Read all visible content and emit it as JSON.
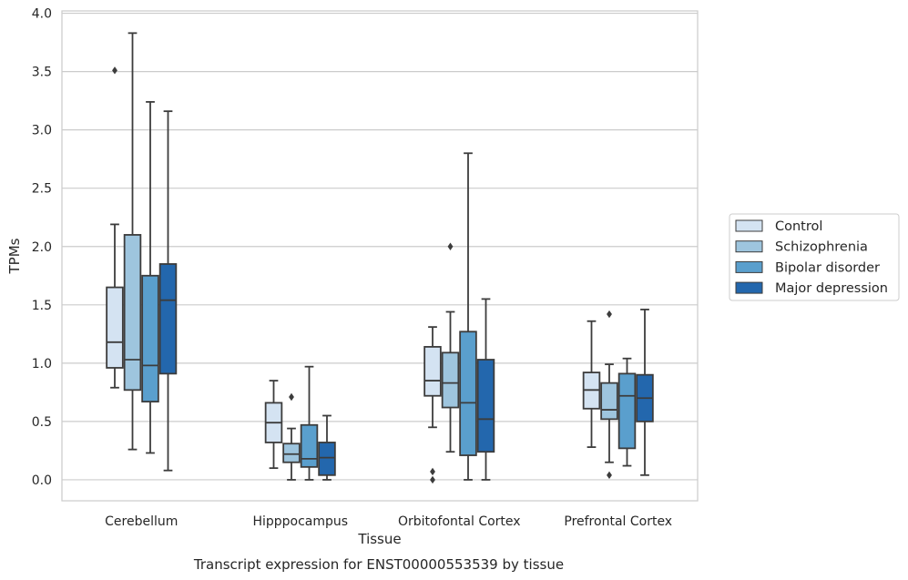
{
  "chart_data": {
    "type": "box",
    "title": "Transcript expression for ENST00000553539 by tissue",
    "xlabel": "Tissue",
    "ylabel": "TPMs",
    "ylim": [
      -0.18,
      4.02
    ],
    "yticks": [
      0.0,
      0.5,
      1.0,
      1.5,
      2.0,
      2.5,
      3.0,
      3.5,
      4.0
    ],
    "ytick_labels": [
      "0.0",
      "0.5",
      "1.0",
      "1.5",
      "2.0",
      "2.5",
      "3.0",
      "3.5",
      "4.0"
    ],
    "grid": "horizontal",
    "legend_position": "right",
    "categories": [
      "Cerebellum",
      "Hipppocampus",
      "Orbitofontal Cortex",
      "Prefrontal Cortex"
    ],
    "series": [
      {
        "name": "Control",
        "color": "#d4e3f2",
        "boxes": [
          {
            "whislo": 0.79,
            "q1": 0.96,
            "med": 1.18,
            "q3": 1.65,
            "whishi": 2.19,
            "fliers": [
              3.51
            ]
          },
          {
            "whislo": 0.1,
            "q1": 0.32,
            "med": 0.49,
            "q3": 0.66,
            "whishi": 0.85,
            "fliers": []
          },
          {
            "whislo": 0.45,
            "q1": 0.72,
            "med": 0.85,
            "q3": 1.14,
            "whishi": 1.31,
            "fliers": [
              0.07,
              0.0
            ]
          },
          {
            "whislo": 0.28,
            "q1": 0.61,
            "med": 0.77,
            "q3": 0.92,
            "whishi": 1.36,
            "fliers": []
          }
        ]
      },
      {
        "name": "Schizophrenia",
        "color": "#9ec5de",
        "boxes": [
          {
            "whislo": 0.26,
            "q1": 0.77,
            "med": 1.03,
            "q3": 2.1,
            "whishi": 3.83,
            "fliers": []
          },
          {
            "whislo": 0.0,
            "q1": 0.15,
            "med": 0.22,
            "q3": 0.31,
            "whishi": 0.44,
            "fliers": [
              0.71
            ]
          },
          {
            "whislo": 0.24,
            "q1": 0.62,
            "med": 0.83,
            "q3": 1.09,
            "whishi": 1.44,
            "fliers": [
              2.0
            ]
          },
          {
            "whislo": 0.15,
            "q1": 0.52,
            "med": 0.6,
            "q3": 0.83,
            "whishi": 0.99,
            "fliers": [
              1.42,
              0.04
            ]
          }
        ]
      },
      {
        "name": "Bipolar disorder",
        "color": "#5a9fcd",
        "boxes": [
          {
            "whislo": 0.23,
            "q1": 0.67,
            "med": 0.98,
            "q3": 1.75,
            "whishi": 3.24,
            "fliers": []
          },
          {
            "whislo": 0.0,
            "q1": 0.11,
            "med": 0.18,
            "q3": 0.47,
            "whishi": 0.97,
            "fliers": []
          },
          {
            "whislo": 0.0,
            "q1": 0.21,
            "med": 0.66,
            "q3": 1.27,
            "whishi": 2.8,
            "fliers": []
          },
          {
            "whislo": 0.12,
            "q1": 0.27,
            "med": 0.72,
            "q3": 0.91,
            "whishi": 1.04,
            "fliers": []
          }
        ]
      },
      {
        "name": "Major depression",
        "color": "#2367ad",
        "boxes": [
          {
            "whislo": 0.08,
            "q1": 0.91,
            "med": 1.54,
            "q3": 1.85,
            "whishi": 3.16,
            "fliers": []
          },
          {
            "whislo": 0.0,
            "q1": 0.04,
            "med": 0.19,
            "q3": 0.32,
            "whishi": 0.55,
            "fliers": []
          },
          {
            "whislo": 0.0,
            "q1": 0.24,
            "med": 0.52,
            "q3": 1.03,
            "whishi": 1.55,
            "fliers": []
          },
          {
            "whislo": 0.04,
            "q1": 0.5,
            "med": 0.7,
            "q3": 0.9,
            "whishi": 1.46,
            "fliers": []
          }
        ]
      }
    ]
  }
}
